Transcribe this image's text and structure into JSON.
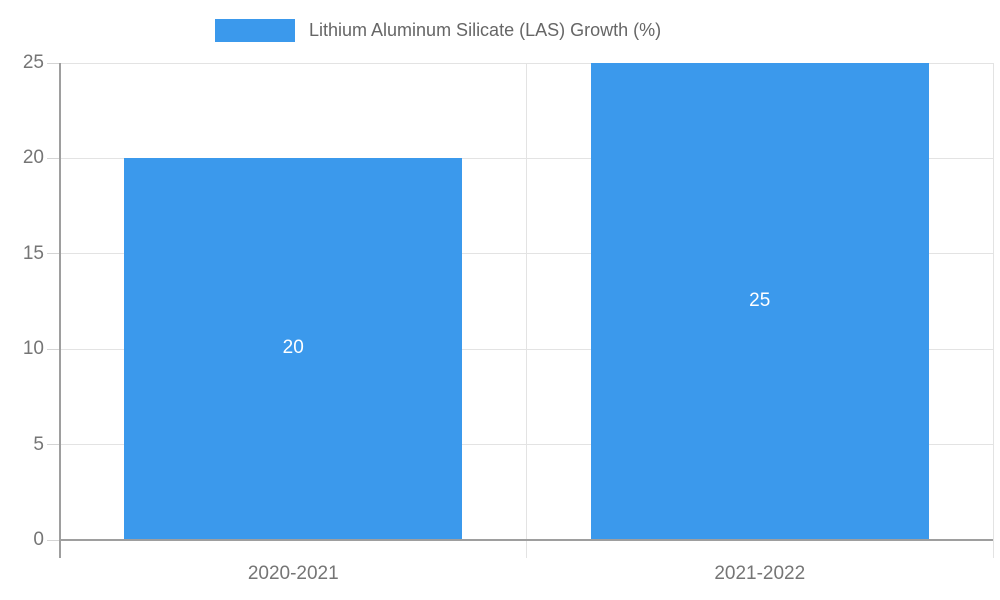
{
  "legend": {
    "label": "Lithium Aluminum Silicate (LAS) Growth (%)"
  },
  "chart_data": {
    "type": "bar",
    "categories": [
      "2020-2021",
      "2021-2022"
    ],
    "series": [
      {
        "name": "Lithium Aluminum Silicate (LAS) Growth (%)",
        "values": [
          20,
          25
        ]
      }
    ],
    "data_labels": [
      "20",
      "25"
    ],
    "title": "",
    "xlabel": "",
    "ylabel": "",
    "ylim": [
      0,
      25
    ],
    "yticks": [
      0,
      5,
      10,
      15,
      20,
      25
    ],
    "grid": true,
    "legend_position": "top-center",
    "colors": {
      "bar": "#3b99ec",
      "data_label": "#ffffff",
      "axis_text": "#757575",
      "legend_text": "#666666",
      "gridline": "#e3e3e3",
      "tick": "#d4d4d4",
      "axis_line": "#9e9e9e",
      "background": "#ffffff"
    }
  }
}
